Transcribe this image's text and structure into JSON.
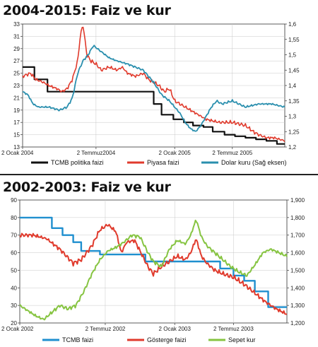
{
  "chart_data": [
    {
      "type": "line",
      "title": "2004-2015: Faiz ve kur",
      "x_tick_labels": [
        "2 Ocak 2004",
        "2 Temmuz2004",
        "2 Ocak 2005",
        "2 Temmuz 2005"
      ],
      "ylim_left": [
        13,
        33
      ],
      "yticks_left": [
        "13",
        "15",
        "17",
        "19",
        "21",
        "23",
        "25",
        "27",
        "29",
        "31",
        "33"
      ],
      "ylim_right": [
        1.2,
        1.6
      ],
      "yticks_right": [
        "1,2",
        "1,25",
        "1,3",
        "1,35",
        "1,4",
        "1,45",
        "1,5",
        "1,55",
        "1,6"
      ],
      "grid": true,
      "legend_position": "bottom",
      "colors": {
        "tcmb": "#111111",
        "piyasa": "#e03a2c",
        "dolar": "#2a8fae"
      },
      "series": [
        {
          "name": "TCMB politika faizi",
          "axis": "left",
          "x": [
            0,
            0.045,
            0.045,
            0.095,
            0.095,
            0.5,
            0.5,
            0.53,
            0.53,
            0.575,
            0.575,
            0.615,
            0.615,
            0.65,
            0.65,
            0.69,
            0.69,
            0.725,
            0.725,
            0.77,
            0.77,
            0.81,
            0.81,
            0.85,
            0.85,
            0.89,
            0.89,
            0.93,
            0.93,
            0.97,
            0.97,
            1.0
          ],
          "values": [
            26,
            26,
            24,
            24,
            22,
            22,
            20,
            20,
            18.25,
            18.25,
            17.5,
            17.5,
            17,
            17,
            16.5,
            16.5,
            16.25,
            16.25,
            15.5,
            15.5,
            15,
            15,
            14.75,
            14.75,
            14.5,
            14.5,
            14.25,
            14.25,
            14,
            14,
            13.5,
            13.5
          ]
        },
        {
          "name": "Piyasa faizi",
          "axis": "left",
          "x": [
            0,
            0.03,
            0.05,
            0.08,
            0.1,
            0.13,
            0.15,
            0.17,
            0.19,
            0.21,
            0.22,
            0.23,
            0.245,
            0.26,
            0.28,
            0.3,
            0.33,
            0.36,
            0.38,
            0.4,
            0.43,
            0.46,
            0.48,
            0.5,
            0.52,
            0.54,
            0.56,
            0.58,
            0.6,
            0.62,
            0.64,
            0.66,
            0.7,
            0.75,
            0.8,
            0.85,
            0.88,
            0.9,
            0.93,
            0.96,
            1.0
          ],
          "values": [
            24.5,
            25,
            24,
            23.5,
            23,
            22.5,
            22,
            22.5,
            24,
            27,
            31,
            33,
            28,
            27,
            26.5,
            25.5,
            26,
            25.5,
            26,
            25,
            24.5,
            25,
            24,
            23.5,
            23,
            22,
            22.5,
            20.5,
            20,
            19.5,
            19,
            18.5,
            17.5,
            17,
            17,
            16.5,
            15.5,
            15,
            14.5,
            14.5,
            14
          ]
        },
        {
          "name": "Dolar kuru (Sağ eksen)",
          "axis": "right",
          "x": [
            0,
            0.02,
            0.04,
            0.06,
            0.1,
            0.14,
            0.17,
            0.19,
            0.21,
            0.23,
            0.25,
            0.27,
            0.3,
            0.33,
            0.36,
            0.4,
            0.43,
            0.46,
            0.48,
            0.5,
            0.53,
            0.56,
            0.58,
            0.6,
            0.62,
            0.64,
            0.66,
            0.68,
            0.7,
            0.72,
            0.74,
            0.76,
            0.8,
            0.85,
            0.9,
            0.95,
            1.0
          ],
          "values": [
            1.38,
            1.37,
            1.34,
            1.33,
            1.33,
            1.32,
            1.33,
            1.36,
            1.44,
            1.48,
            1.5,
            1.53,
            1.51,
            1.49,
            1.48,
            1.47,
            1.46,
            1.45,
            1.43,
            1.41,
            1.37,
            1.35,
            1.33,
            1.31,
            1.28,
            1.26,
            1.25,
            1.27,
            1.3,
            1.33,
            1.35,
            1.34,
            1.35,
            1.33,
            1.34,
            1.34,
            1.33
          ]
        }
      ]
    },
    {
      "type": "line",
      "title": "2002-2003: Faiz ve kur",
      "x_tick_labels": [
        "2 Ocak 2002",
        "2 Temmuz 2002",
        "2 Ocak 2003",
        "2 Temmuz 2003"
      ],
      "ylim_left": [
        20,
        90
      ],
      "yticks_left": [
        "20",
        "30",
        "40",
        "50",
        "60",
        "70",
        "80",
        "90"
      ],
      "ylim_right": [
        1.2,
        1.9
      ],
      "yticks_right": [
        "1,200",
        "1,300",
        "1,400",
        "1,500",
        "1,600",
        "1,700",
        "1,800",
        "1,900"
      ],
      "grid": true,
      "legend_position": "bottom",
      "colors": {
        "tcmb": "#1f8fcf",
        "gosterge": "#e03a2c",
        "sepet": "#86c441"
      },
      "series": [
        {
          "name": "TCMB faizi",
          "axis": "left",
          "x": [
            0,
            0.12,
            0.12,
            0.16,
            0.16,
            0.2,
            0.2,
            0.23,
            0.23,
            0.3,
            0.3,
            0.47,
            0.47,
            0.75,
            0.75,
            0.8,
            0.8,
            0.84,
            0.84,
            0.88,
            0.88,
            0.93,
            0.93,
            1.0
          ],
          "values": [
            80,
            80,
            74,
            74,
            70,
            70,
            66,
            66,
            61,
            61,
            59,
            59,
            55,
            55,
            51,
            51,
            47,
            47,
            44,
            44,
            38,
            38,
            29,
            29
          ]
        },
        {
          "name": "Gösterge faizi",
          "axis": "left",
          "x": [
            0,
            0.05,
            0.1,
            0.15,
            0.2,
            0.23,
            0.27,
            0.3,
            0.33,
            0.36,
            0.38,
            0.4,
            0.43,
            0.46,
            0.48,
            0.5,
            0.53,
            0.56,
            0.59,
            0.62,
            0.64,
            0.66,
            0.68,
            0.7,
            0.73,
            0.76,
            0.8,
            0.84,
            0.88,
            0.92,
            0.96,
            1.0
          ],
          "values": [
            70,
            70,
            68,
            62,
            54,
            56,
            64,
            73,
            76,
            72,
            60,
            66,
            67,
            58,
            52,
            48,
            52,
            55,
            58,
            56,
            60,
            68,
            58,
            54,
            50,
            48,
            46,
            42,
            37,
            32,
            28,
            25
          ]
        },
        {
          "name": "Sepet kur",
          "axis": "right",
          "x": [
            0,
            0.03,
            0.06,
            0.09,
            0.12,
            0.15,
            0.18,
            0.21,
            0.24,
            0.27,
            0.3,
            0.33,
            0.36,
            0.39,
            0.42,
            0.45,
            0.48,
            0.5,
            0.53,
            0.56,
            0.59,
            0.62,
            0.64,
            0.66,
            0.68,
            0.7,
            0.73,
            0.76,
            0.79,
            0.82,
            0.85,
            0.88,
            0.91,
            0.94,
            0.97,
            1.0
          ],
          "values": [
            1.3,
            1.27,
            1.24,
            1.22,
            1.26,
            1.3,
            1.28,
            1.3,
            1.38,
            1.48,
            1.56,
            1.61,
            1.63,
            1.66,
            1.7,
            1.69,
            1.6,
            1.55,
            1.52,
            1.62,
            1.67,
            1.65,
            1.7,
            1.79,
            1.69,
            1.64,
            1.6,
            1.56,
            1.52,
            1.49,
            1.47,
            1.53,
            1.6,
            1.62,
            1.6,
            1.58
          ]
        }
      ]
    }
  ]
}
